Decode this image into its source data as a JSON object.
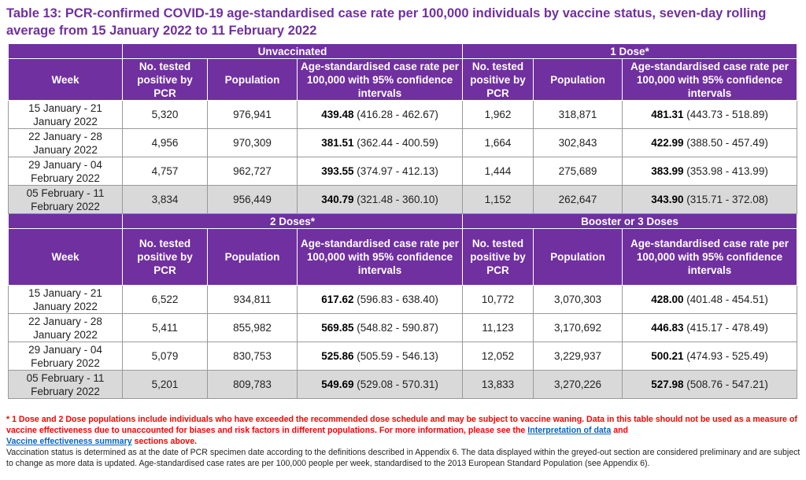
{
  "title": "Table 13: PCR-confirmed COVID-19 age-standardised case rate per 100,000 individuals by vaccine status, seven-day rolling average from 15 January 2022 to 11 February 2022",
  "colors": {
    "header": "#7030a0",
    "grey_row": "#d9d9d9",
    "warning": "#ff0000",
    "link": "#0563c1"
  },
  "columns": {
    "week": "Week",
    "tested": "No. tested positive by PCR",
    "population": "Population",
    "rate": "Age-standardised case rate per 100,000 with 95% confidence intervals"
  },
  "sections": [
    {
      "groups": [
        "Unvaccinated",
        "1 Dose*"
      ],
      "rows": [
        {
          "week": "15 January - 21 January 2022",
          "a": [
            "5,320",
            "976,941",
            "439.48",
            "(416.28 - 462.67)"
          ],
          "b": [
            "1,962",
            "318,871",
            "481.31",
            "(443.73 - 518.89)"
          ]
        },
        {
          "week": "22 January - 28 January 2022",
          "a": [
            "4,956",
            "970,309",
            "381.51",
            "(362.44 - 400.59)"
          ],
          "b": [
            "1,664",
            "302,843",
            "422.99",
            "(388.50 - 457.49)"
          ]
        },
        {
          "week": "29 January - 04 February 2022",
          "a": [
            "4,757",
            "962,727",
            "393.55",
            "(374.97 - 412.13)"
          ],
          "b": [
            "1,444",
            "275,689",
            "383.99",
            "(353.98 - 413.99)"
          ]
        },
        {
          "week": "05 February - 11 February 2022",
          "preliminary": true,
          "a": [
            "3,834",
            "956,449",
            "340.79",
            "(321.48 - 360.10)"
          ],
          "b": [
            "1,152",
            "262,647",
            "343.90",
            "(315.71 - 372.08)"
          ]
        }
      ]
    },
    {
      "groups": [
        "2 Doses*",
        "Booster or 3 Doses"
      ],
      "rows": [
        {
          "week": "15 January - 21 January 2022",
          "a": [
            "6,522",
            "934,811",
            "617.62",
            "(596.83 - 638.40)"
          ],
          "b": [
            "10,772",
            "3,070,303",
            "428.00",
            "(401.48 - 454.51)"
          ]
        },
        {
          "week": "22 January - 28 January 2022",
          "a": [
            "5,411",
            "855,982",
            "569.85",
            "(548.82 - 590.87)"
          ],
          "b": [
            "11,123",
            "3,170,692",
            "446.83",
            "(415.17 - 478.49)"
          ]
        },
        {
          "week": "29 January - 04 February 2022",
          "a": [
            "5,079",
            "830,753",
            "525.86",
            "(505.59 - 546.13)"
          ],
          "b": [
            "12,052",
            "3,229,937",
            "500.21",
            "(474.93 - 525.49)"
          ]
        },
        {
          "week": "05 February - 11 February 2022",
          "preliminary": true,
          "a": [
            "5,201",
            "809,783",
            "549.69",
            "(529.08 - 570.31)"
          ],
          "b": [
            "13,833",
            "3,270,226",
            "527.98",
            "(508.76 - 547.21)"
          ]
        }
      ]
    }
  ],
  "notes": {
    "warning_1": "* 1 Dose and 2 Dose populations include individuals who have exceeded the recommended dose schedule and may be subject to vaccine waning. Data in this table should not be used as a measure of vaccine effectiveness due to unaccounted for biases and risk factors in different populations. For more information, please see the",
    "link_1": "Interpretation of data",
    "and": "and",
    "link_2": "Vaccine effectiveness summary",
    "warning_2": "sections above.",
    "info": "Vaccination status is determined as at the date of PCR specimen date according to the definitions described in Appendix 6. The data displayed within the greyed-out section are considered preliminary and are subject to change as more data is updated. Age-standardised case rates are per 100,000 people per week, standardised to the 2013 European Standard Population (see Appendix 6)."
  }
}
